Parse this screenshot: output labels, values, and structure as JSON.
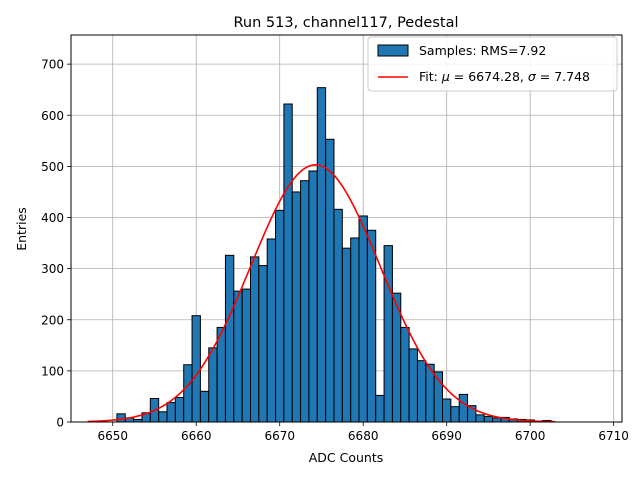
{
  "chart_data": {
    "type": "bar",
    "title": "Run 513, channel117, Pedestal",
    "xlabel": "ADC Counts",
    "ylabel": "Entries",
    "xlim": [
      6645,
      6711
    ],
    "ylim": [
      0,
      757
    ],
    "xticks": [
      "6650",
      "6660",
      "6670",
      "6680",
      "6690",
      "6700",
      "6710"
    ],
    "yticks": [
      "0",
      "100",
      "200",
      "300",
      "400",
      "500",
      "600",
      "700"
    ],
    "grid": true,
    "legend_position": "top-right",
    "bin_width": 1,
    "series": [
      {
        "name": "Samples: RMS=7.92",
        "color": "#1f77b4",
        "edge_color": "#000000",
        "bins": [
          [
            6651,
            16
          ],
          [
            6652,
            8
          ],
          [
            6653,
            5
          ],
          [
            6654,
            18
          ],
          [
            6655,
            46
          ],
          [
            6656,
            20
          ],
          [
            6657,
            38
          ],
          [
            6658,
            48
          ],
          [
            6659,
            112
          ],
          [
            6660,
            208
          ],
          [
            6661,
            60
          ],
          [
            6662,
            145
          ],
          [
            6663,
            185
          ],
          [
            6664,
            326
          ],
          [
            6665,
            256
          ],
          [
            6666,
            260
          ],
          [
            6667,
            323
          ],
          [
            6668,
            306
          ],
          [
            6669,
            358
          ],
          [
            6670,
            414
          ],
          [
            6671,
            622
          ],
          [
            6672,
            450
          ],
          [
            6673,
            472
          ],
          [
            6674,
            491
          ],
          [
            6675,
            654
          ],
          [
            6676,
            553
          ],
          [
            6677,
            416
          ],
          [
            6678,
            340
          ],
          [
            6679,
            360
          ],
          [
            6680,
            403
          ],
          [
            6681,
            375
          ],
          [
            6682,
            52
          ],
          [
            6683,
            345
          ],
          [
            6684,
            252
          ],
          [
            6685,
            185
          ],
          [
            6686,
            143
          ],
          [
            6687,
            120
          ],
          [
            6688,
            113
          ],
          [
            6689,
            98
          ],
          [
            6690,
            45
          ],
          [
            6691,
            30
          ],
          [
            6692,
            54
          ],
          [
            6693,
            32
          ],
          [
            6694,
            14
          ],
          [
            6695,
            11
          ],
          [
            6696,
            8
          ],
          [
            6697,
            9
          ],
          [
            6698,
            6
          ],
          [
            6699,
            5
          ],
          [
            6700,
            4
          ],
          [
            6701,
            2
          ],
          [
            6702,
            3
          ]
        ]
      },
      {
        "name": "Fit: μ = 6674.28, σ = 7.748",
        "name_parts": [
          "Fit: ",
          "μ",
          " = 6674.28, ",
          "σ",
          " = 7.748"
        ],
        "type": "line",
        "color": "#ff0000",
        "mu": 6674.28,
        "sigma": 7.748,
        "peak": 503,
        "x_range": [
          6647,
          6703
        ]
      }
    ]
  }
}
